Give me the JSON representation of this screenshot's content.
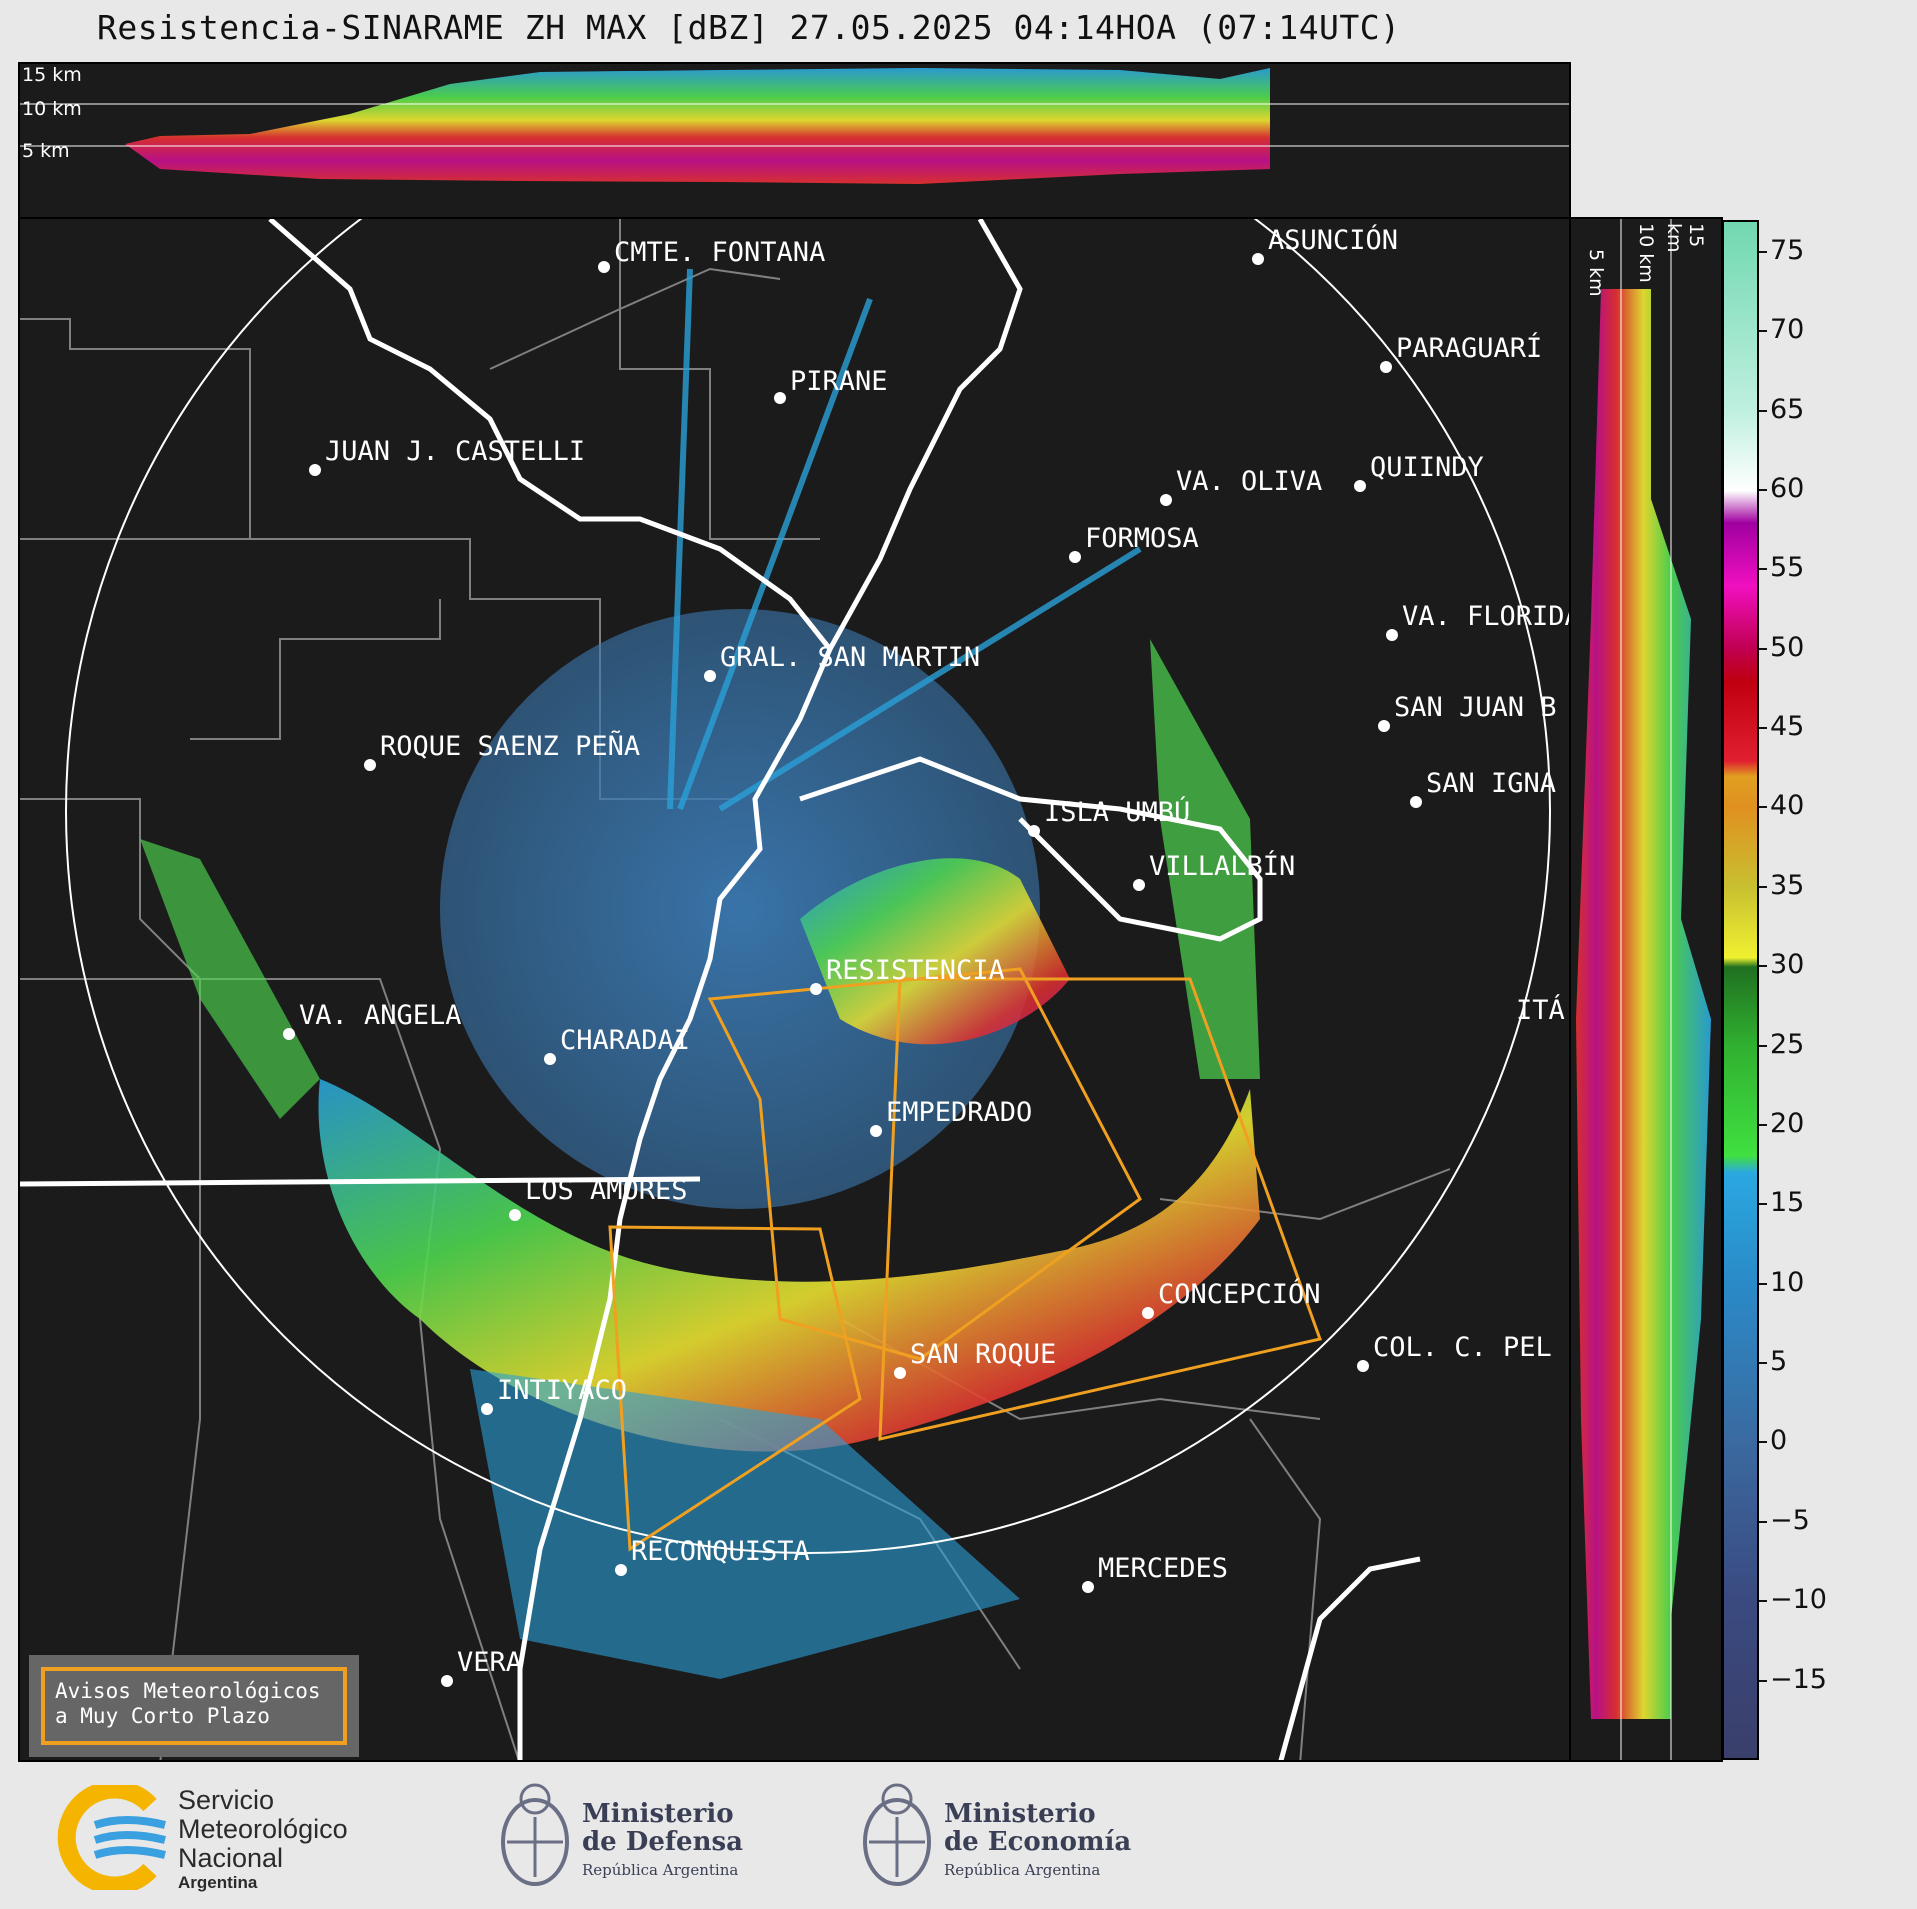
{
  "title": "Resistencia-SINARAME ZH MAX [dBZ] 27.05.2025 04:14HOA (07:14UTC)",
  "top_xsec": {
    "labels": [
      "15 km",
      "10 km",
      "5 km"
    ]
  },
  "right_xsec": {
    "labels": [
      "5 km",
      "10 km",
      "15 km"
    ]
  },
  "colorbar": {
    "ticks": [
      "75",
      "70",
      "65",
      "60",
      "55",
      "50",
      "45",
      "40",
      "35",
      "30",
      "25",
      "20",
      "15",
      "10",
      "5",
      "0",
      "−5",
      "−10",
      "−15"
    ],
    "range": [
      -20,
      77
    ]
  },
  "cities": [
    {
      "name": "CMTE. FONTANA"
    },
    {
      "name": "ASUNCIÓN"
    },
    {
      "name": "PARAGUARÍ"
    },
    {
      "name": "PIRANE"
    },
    {
      "name": "JUAN J. CASTELLI"
    },
    {
      "name": "VA. OLIVA"
    },
    {
      "name": "QUIINDY"
    },
    {
      "name": "FORMOSA"
    },
    {
      "name": "VA. FLORIDA"
    },
    {
      "name": "GRAL. SAN MARTIN"
    },
    {
      "name": "SAN JUAN B"
    },
    {
      "name": "ROQUE SAENZ PEÑA"
    },
    {
      "name": "SAN IGNA"
    },
    {
      "name": "ISLA UMBÚ"
    },
    {
      "name": "VILLALBÍN"
    },
    {
      "name": "RESISTENCIA"
    },
    {
      "name": "VA. ANGELA"
    },
    {
      "name": "CHARADAI"
    },
    {
      "name": "ITÁ"
    },
    {
      "name": "EMPEDRADO"
    },
    {
      "name": "LOS AMORES"
    },
    {
      "name": "CONCEPCIÓN"
    },
    {
      "name": "COL. C. PEL"
    },
    {
      "name": "SAN ROQUE"
    },
    {
      "name": "INTIYACO"
    },
    {
      "name": "RECONQUISTA"
    },
    {
      "name": "MERCEDES"
    },
    {
      "name": "VERA"
    }
  ],
  "legend": {
    "line1": "Avisos Meteorológicos",
    "line2": "a Muy Corto Plazo"
  },
  "footer": {
    "smn_line1": "Servicio",
    "smn_line2": "Meteorológico",
    "smn_line3": "Nacional",
    "smn_line4": "Argentina",
    "def_line1": "Ministerio",
    "def_line2": "de Defensa",
    "def_line3": "República Argentina",
    "eco_line1": "Ministerio",
    "eco_line2": "de Economía",
    "eco_line3": "República Argentina"
  },
  "colors": {
    "background": "#1b1b1b",
    "warning_polygon": "#f0a020",
    "borders": "#ffffff",
    "departments": "#808080"
  }
}
